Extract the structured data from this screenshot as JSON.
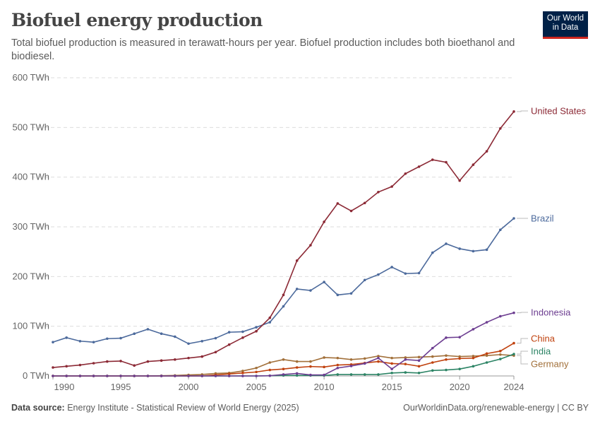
{
  "header": {
    "title": "Biofuel energy production",
    "subtitle": "Total biofuel production is measured in terawatt-hours per year. Biofuel production includes both bioethanol and biodiesel.",
    "logo": "Our World in Data"
  },
  "footer": {
    "source_label": "Data source:",
    "source": "Energy Institute - Statistical Review of World Energy (2025)",
    "url": "OurWorldinData.org/renewable-energy | CC BY"
  },
  "chart_data": {
    "type": "line",
    "title": "Biofuel energy production",
    "xlabel": "",
    "ylabel": "",
    "ylim": [
      0,
      600
    ],
    "xlim": [
      1990,
      2024
    ],
    "grid": true,
    "legend": "right (inline labels)",
    "y_ticks": [
      "0 TWh",
      "100 TWh",
      "200 TWh",
      "300 TWh",
      "400 TWh",
      "500 TWh",
      "600 TWh"
    ],
    "x_ticks": [
      "1990",
      "1995",
      "2000",
      "2005",
      "2010",
      "2015",
      "2020",
      "2024"
    ],
    "x": [
      1990,
      1991,
      1992,
      1993,
      1994,
      1995,
      1996,
      1997,
      1998,
      1999,
      2000,
      2001,
      2002,
      2003,
      2004,
      2005,
      2006,
      2007,
      2008,
      2009,
      2010,
      2011,
      2012,
      2013,
      2014,
      2015,
      2016,
      2017,
      2018,
      2019,
      2020,
      2021,
      2022,
      2023,
      2024
    ],
    "series": [
      {
        "name": "United States",
        "color": "#8c2a36",
        "values": [
          17,
          19.5,
          22,
          25.6,
          29,
          30,
          21,
          29,
          31,
          33,
          36,
          39,
          48,
          63,
          77,
          90,
          117,
          163,
          232,
          263,
          310,
          347,
          332,
          348,
          370,
          381,
          407,
          421,
          435,
          430,
          393,
          425,
          452,
          498,
          532
        ]
      },
      {
        "name": "Brazil",
        "color": "#4c6a9c",
        "values": [
          68,
          77,
          70,
          68,
          75,
          76,
          85,
          94,
          85,
          79,
          65,
          70,
          76,
          88,
          89,
          98,
          108,
          140,
          175,
          172,
          189,
          163,
          166,
          193,
          204,
          219,
          206,
          207,
          248,
          266,
          256,
          251,
          254,
          294,
          317
        ]
      },
      {
        "name": "Indonesia",
        "color": "#6d3e91",
        "values": [
          0,
          0,
          0,
          0,
          0,
          0,
          0,
          0,
          0,
          0,
          0,
          0,
          0,
          0,
          0,
          0,
          0.5,
          3,
          5,
          2,
          2,
          16,
          20,
          25,
          36,
          14,
          33,
          31,
          56,
          77,
          78,
          94,
          108,
          120,
          127
        ]
      },
      {
        "name": "China",
        "color": "#c0420f",
        "values": [
          0,
          0,
          0,
          0,
          0,
          0,
          0,
          0,
          0,
          0,
          0,
          0,
          2,
          4,
          6,
          8,
          12,
          14,
          17,
          19,
          18,
          22,
          23,
          26,
          29,
          25,
          24,
          19.5,
          27,
          33,
          35,
          36,
          45,
          50,
          66
        ]
      },
      {
        "name": "India",
        "color": "#2c8465",
        "values": [
          0,
          0,
          0,
          0,
          0,
          0,
          0,
          0,
          0,
          0,
          0,
          0,
          0,
          0,
          0,
          0,
          0.5,
          1,
          1,
          1,
          1,
          3,
          3,
          3,
          3,
          6,
          7,
          6,
          11,
          12,
          14,
          19.5,
          27,
          34,
          44
        ]
      },
      {
        "name": "Germany",
        "color": "#a2703a",
        "values": [
          0,
          0,
          0,
          0,
          0,
          0,
          0,
          0,
          0.5,
          1,
          2,
          3,
          5,
          6,
          10,
          16,
          27,
          33,
          29,
          29,
          37,
          36,
          33,
          35,
          40,
          36,
          37,
          38,
          39,
          41,
          39,
          40,
          41,
          43,
          41
        ]
      }
    ]
  }
}
